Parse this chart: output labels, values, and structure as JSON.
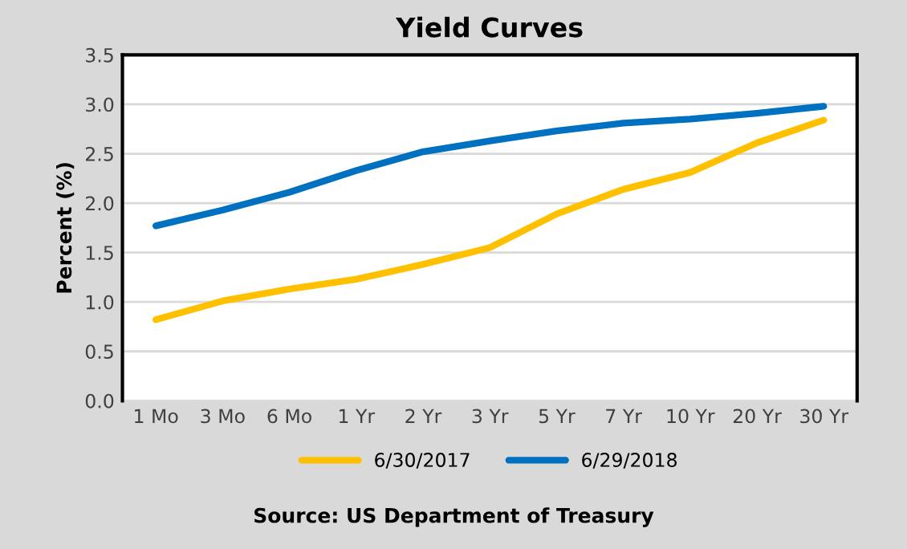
{
  "chart_data": {
    "type": "line",
    "title": "Yield Curves",
    "ylabel": "Percent (%)",
    "categories": [
      "1 Mo",
      "3 Mo",
      "6 Mo",
      "1 Yr",
      "2 Yr",
      "3 Yr",
      "5 Yr",
      "7 Yr",
      "10 Yr",
      "20 Yr",
      "30 Yr"
    ],
    "series": [
      {
        "name": "6/30/2017",
        "color": "#ffc000",
        "values": [
          0.82,
          1.01,
          1.13,
          1.23,
          1.38,
          1.55,
          1.89,
          2.14,
          2.31,
          2.61,
          2.84
        ]
      },
      {
        "name": "6/29/2018",
        "color": "#0070c0",
        "values": [
          1.77,
          1.93,
          2.11,
          2.33,
          2.52,
          2.63,
          2.73,
          2.81,
          2.85,
          2.91,
          2.98
        ]
      }
    ],
    "ylim": [
      0,
      3.5
    ],
    "yticks": [
      {
        "value": 0,
        "label": "0.0"
      },
      0.5,
      {
        "value": 1,
        "label": "1.0"
      },
      1.5,
      {
        "value": 2,
        "label": "2.0"
      },
      2.5,
      {
        "value": 3,
        "label": "3.0"
      },
      3.5
    ],
    "grid": "y",
    "legend": "bottom",
    "marker": "none",
    "line_style": "solid",
    "annotations": [
      "Source: US Department of Treasury"
    ]
  }
}
